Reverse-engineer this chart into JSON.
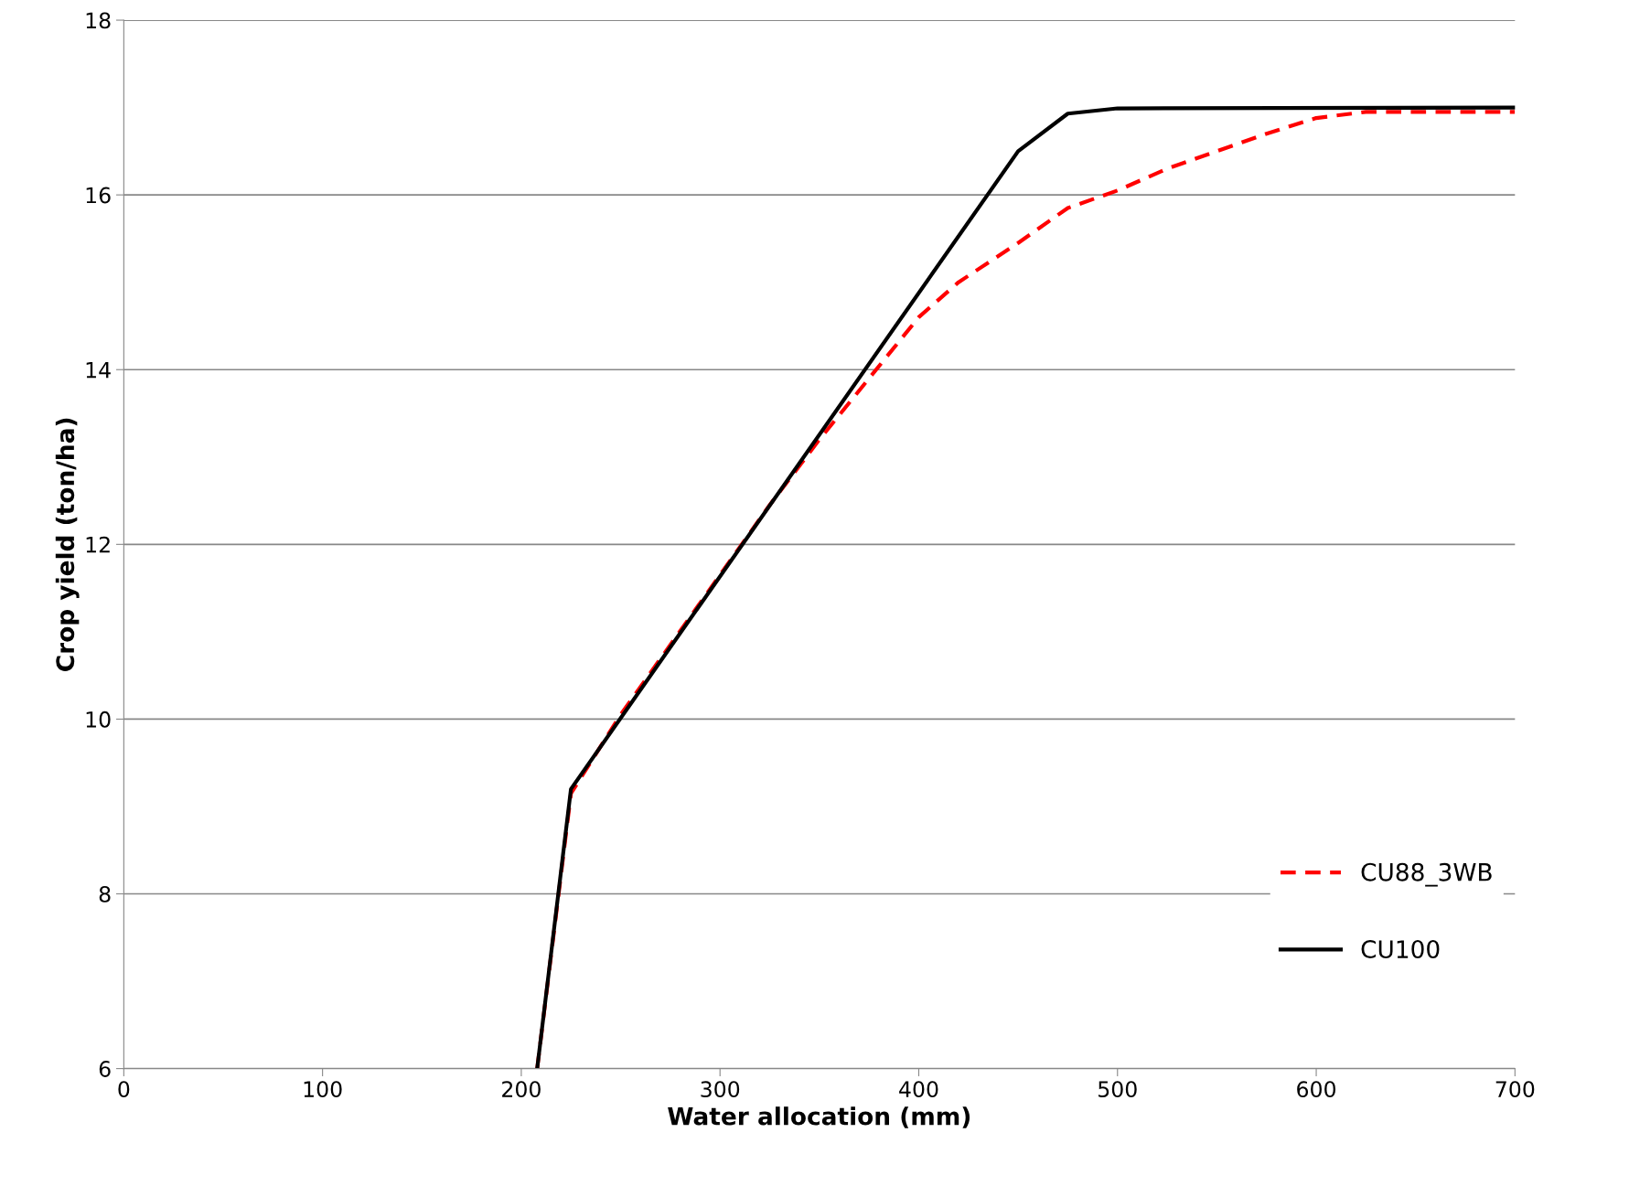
{
  "chart_data": {
    "type": "line",
    "xlabel": "Water allocation (mm)",
    "ylabel": "Crop yield (ton/ha)",
    "xlim": [
      0,
      700
    ],
    "xticks": [
      0,
      100,
      200,
      300,
      400,
      500,
      600,
      700
    ],
    "ylim": [
      6,
      18
    ],
    "yticks": [
      6,
      8,
      10,
      12,
      14,
      16,
      18
    ],
    "grid": "y",
    "legend": "lower right",
    "series": [
      {
        "name": "CU88_3WB",
        "color": "#ff0000",
        "line_style": "dashed",
        "x": [
          208,
          225,
          250,
          275,
          300,
          325,
          350,
          375,
          400,
          420,
          450,
          475,
          500,
          525,
          550,
          575,
          600,
          625,
          650,
          700
        ],
        "values": [
          6,
          9.15,
          10.05,
          10.85,
          11.65,
          12.45,
          13.2,
          13.9,
          14.6,
          15.0,
          15.45,
          15.85,
          16.05,
          16.3,
          16.5,
          16.7,
          16.88,
          16.95,
          16.95,
          16.95
        ]
      },
      {
        "name": "CU100",
        "color": "#000000",
        "line_style": "solid",
        "x": [
          208,
          225,
          450,
          475,
          500,
          700
        ],
        "values": [
          6,
          9.2,
          16.5,
          16.93,
          16.99,
          17.0
        ]
      }
    ]
  }
}
